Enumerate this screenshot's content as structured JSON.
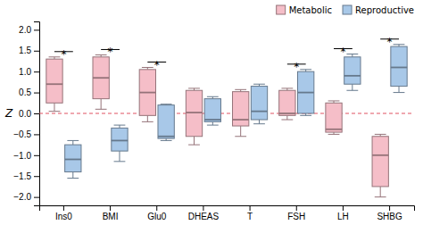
{
  "chart_data": {
    "type": "box",
    "y_label": "Z",
    "categories": [
      "Ins0",
      "BMI",
      "Glu0",
      "DHEAS",
      "T",
      "FSH",
      "LH",
      "SHBG"
    ],
    "series": [
      {
        "name": "Metabolic",
        "color": "#f5bec8",
        "q1": [
          0.25,
          0.35,
          -0.05,
          -0.55,
          -0.3,
          -0.05,
          -0.45,
          -1.75
        ],
        "median": [
          0.7,
          0.85,
          0.5,
          0.02,
          -0.15,
          0.0,
          -0.38,
          -1.0
        ],
        "q3": [
          1.3,
          1.35,
          1.05,
          0.55,
          0.52,
          0.55,
          0.25,
          -0.55
        ],
        "whislo": [
          0.05,
          0.1,
          -0.2,
          -0.75,
          -0.55,
          -0.15,
          -0.5,
          -2.0
        ],
        "whishi": [
          1.35,
          1.4,
          1.1,
          0.6,
          0.57,
          0.6,
          0.3,
          -0.5
        ]
      },
      {
        "name": "Reproductive",
        "color": "#a8c8e8",
        "q1": [
          -1.4,
          -0.9,
          -0.6,
          -0.2,
          -0.15,
          0.0,
          0.7,
          0.65
        ],
        "median": [
          -1.1,
          -0.65,
          -0.55,
          -0.15,
          0.05,
          0.5,
          0.9,
          1.1
        ],
        "q3": [
          -0.75,
          -0.35,
          0.2,
          0.35,
          0.65,
          1.0,
          1.35,
          1.6
        ],
        "whislo": [
          -1.55,
          -1.15,
          -0.65,
          -0.28,
          -0.25,
          -0.05,
          0.55,
          0.5
        ],
        "whishi": [
          -0.65,
          -0.28,
          0.22,
          0.4,
          0.7,
          1.05,
          1.42,
          1.65
        ]
      }
    ],
    "annotations": [
      {
        "category": "Ins0",
        "text": "*"
      },
      {
        "category": "BMI",
        "text": "*"
      },
      {
        "category": "Glu0",
        "text": "*"
      },
      {
        "category": "FSH",
        "text": "*"
      },
      {
        "category": "LH",
        "text": "*"
      },
      {
        "category": "SHBG",
        "text": "*"
      }
    ],
    "hline": {
      "value": 0,
      "color": "#e05060",
      "line_style": "dashed"
    },
    "ylim": [
      -2.2,
      2.2
    ],
    "yticks": [
      {
        "value": -2,
        "label": "−2.0"
      },
      {
        "value": -1.5,
        "label": "−1.5"
      },
      {
        "value": -1,
        "label": "−1.0"
      },
      {
        "value": -0.5,
        "label": "−0.5"
      },
      {
        "value": 0,
        "label": "0.0"
      },
      {
        "value": 0.5,
        "label": "0.5"
      },
      {
        "value": 1,
        "label": "1.0"
      },
      {
        "value": 1.5,
        "label": "1.5"
      },
      {
        "value": 2,
        "label": "2.0"
      }
    ],
    "grid": false,
    "legend": "upper right"
  }
}
